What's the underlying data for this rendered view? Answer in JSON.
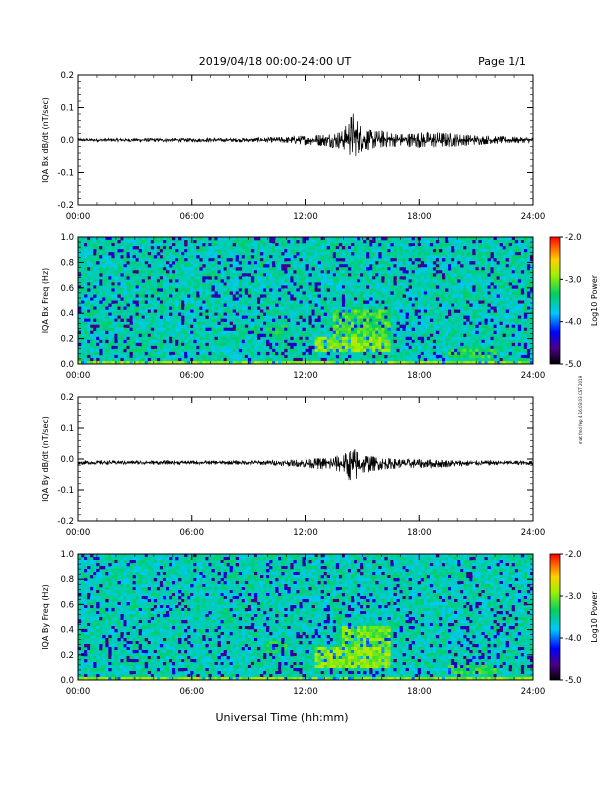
{
  "header": {
    "title": "2019/04/18  00:00-24:00 UT",
    "page": "Page 1/1"
  },
  "side_note": "mat fmd fep 4 16:03:03 CST 2019",
  "colorbar": {
    "label": "Log10 Power",
    "ticks": [
      "-2.0",
      "-3.0",
      "-4.0",
      "-5.0"
    ],
    "range": [
      -5.0,
      -2.0
    ]
  },
  "footer": {
    "xlabel": "Universal Time (hh:mm)"
  },
  "x_ticks": [
    "00:00",
    "06:00",
    "12:00",
    "18:00",
    "24:00"
  ],
  "chart_data": [
    {
      "id": "bx_timeseries",
      "type": "line",
      "ylabel": "IQA Bx dB/dt (nT/sec)",
      "xlim": [
        0,
        24
      ],
      "ylim": [
        -0.2,
        0.2
      ],
      "y_ticks": [
        "0.2",
        "0.1",
        "0.0",
        "-0.1",
        "-0.2"
      ],
      "series": [
        {
          "x": [
            0,
            2,
            4,
            6,
            8,
            10,
            11,
            12,
            13,
            14,
            14.5,
            15,
            15.5,
            16,
            17,
            18,
            19,
            20,
            21,
            22,
            23,
            24
          ],
          "envelope_plus": [
            0.005,
            0.005,
            0.006,
            0.006,
            0.006,
            0.008,
            0.01,
            0.015,
            0.02,
            0.03,
            0.09,
            0.04,
            0.03,
            0.03,
            0.02,
            0.025,
            0.025,
            0.02,
            0.015,
            0.012,
            0.01,
            0.008
          ],
          "envelope_minus": [
            -0.005,
            -0.005,
            -0.006,
            -0.006,
            -0.006,
            -0.008,
            -0.01,
            -0.015,
            -0.02,
            -0.03,
            -0.06,
            -0.035,
            -0.03,
            -0.025,
            -0.02,
            -0.025,
            -0.025,
            -0.02,
            -0.015,
            -0.012,
            -0.01,
            -0.008
          ]
        }
      ]
    },
    {
      "id": "bx_spectrogram",
      "type": "heatmap",
      "ylabel": "IQA Bx Freq (Hz)",
      "xlim": [
        0,
        24
      ],
      "ylim": [
        0.0,
        1.0
      ],
      "y_ticks": [
        "1.0",
        "0.8",
        "0.6",
        "0.4",
        "0.2",
        "0.0"
      ],
      "background_log_power": -3.6,
      "enhancements": [
        {
          "t": [
            12.5,
            16.5
          ],
          "f": [
            0.1,
            0.22
          ],
          "log_power": -3.0
        },
        {
          "t": [
            13.5,
            16.5
          ],
          "f": [
            0.22,
            0.42
          ],
          "log_power": -3.2
        },
        {
          "t": [
            10.0,
            11.0
          ],
          "f": [
            0.22,
            0.32
          ],
          "log_power": -3.4
        },
        {
          "t": [
            19.5,
            22.0
          ],
          "f": [
            0.05,
            0.12
          ],
          "log_power": -3.3
        }
      ]
    },
    {
      "id": "by_timeseries",
      "type": "line",
      "ylabel": "IQA By dB/dt (nT/sec)",
      "xlim": [
        0,
        24
      ],
      "ylim": [
        -0.2,
        0.2
      ],
      "y_ticks": [
        "0.2",
        "0.1",
        "0.0",
        "-0.1",
        "-0.2"
      ],
      "series": [
        {
          "x": [
            0,
            2,
            4,
            6,
            8,
            10,
            11,
            12,
            13,
            14,
            14.5,
            15,
            15.5,
            16,
            17,
            18,
            19,
            20,
            21,
            22,
            23,
            24
          ],
          "envelope_plus": [
            -0.005,
            -0.005,
            -0.005,
            -0.005,
            -0.005,
            -0.004,
            -0.003,
            0.0,
            0.005,
            0.015,
            0.04,
            0.02,
            0.01,
            0.005,
            0.0,
            0.0,
            -0.002,
            -0.003,
            -0.004,
            -0.005,
            -0.005,
            -0.006
          ],
          "envelope_minus": [
            -0.018,
            -0.018,
            -0.018,
            -0.018,
            -0.018,
            -0.02,
            -0.022,
            -0.028,
            -0.035,
            -0.045,
            -0.085,
            -0.05,
            -0.04,
            -0.035,
            -0.03,
            -0.03,
            -0.028,
            -0.025,
            -0.022,
            -0.02,
            -0.02,
            -0.02
          ]
        }
      ]
    },
    {
      "id": "by_spectrogram",
      "type": "heatmap",
      "ylabel": "IQA By Freq (Hz)",
      "xlim": [
        0,
        24
      ],
      "ylim": [
        0.0,
        1.0
      ],
      "y_ticks": [
        "1.0",
        "0.8",
        "0.6",
        "0.4",
        "0.2",
        "0.0"
      ],
      "background_log_power": -3.6,
      "enhancements": [
        {
          "t": [
            12.5,
            16.5
          ],
          "f": [
            0.1,
            0.25
          ],
          "log_power": -3.0
        },
        {
          "t": [
            14.0,
            16.5
          ],
          "f": [
            0.25,
            0.42
          ],
          "log_power": -3.1
        },
        {
          "t": [
            10.0,
            11.0
          ],
          "f": [
            0.22,
            0.32
          ],
          "log_power": -3.4
        },
        {
          "t": [
            19.5,
            22.0
          ],
          "f": [
            0.05,
            0.12
          ],
          "log_power": -3.3
        }
      ]
    }
  ]
}
